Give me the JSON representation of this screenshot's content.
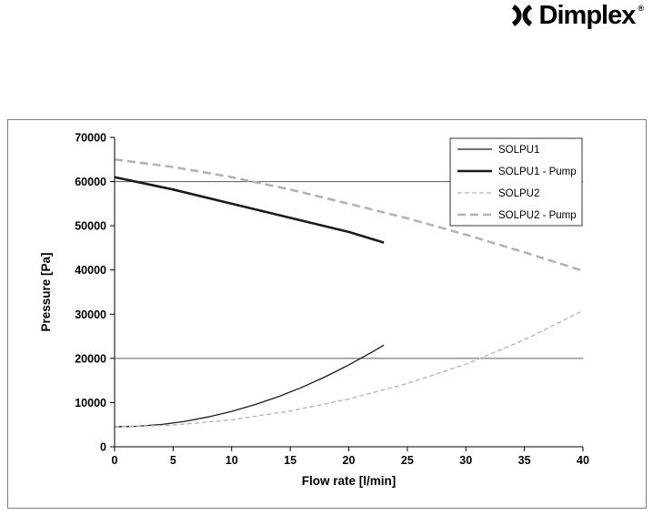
{
  "logo": {
    "text": "Dimplex",
    "registered": "®"
  },
  "chart_data": {
    "type": "line",
    "title": "",
    "xlabel": "Flow rate [l/min]",
    "ylabel": "Pressure [Pa]",
    "xlim": [
      0,
      40
    ],
    "ylim": [
      0,
      70000
    ],
    "xticks": [
      0,
      5,
      10,
      15,
      20,
      25,
      30,
      35,
      40
    ],
    "yticks": [
      0,
      10000,
      20000,
      30000,
      40000,
      50000,
      60000,
      70000
    ],
    "gridlines_y": [
      20000,
      60000
    ],
    "grid": "partial",
    "legend_position": "top-right",
    "series": [
      {
        "name": "SOLPU1",
        "color": "#1a1a1a",
        "width": 1.3,
        "dash": null,
        "x": [
          0,
          2,
          4,
          6,
          8,
          10,
          12,
          14,
          16,
          18,
          20,
          22,
          23
        ],
        "y": [
          4500,
          4650,
          5050,
          5750,
          6750,
          8000,
          9550,
          11350,
          13450,
          15850,
          18500,
          21450,
          23000
        ]
      },
      {
        "name": "SOLPU1 - Pump",
        "color": "#1a1a1a",
        "width": 2.6,
        "dash": null,
        "x": [
          0,
          5,
          10,
          15,
          20,
          23
        ],
        "y": [
          61000,
          58200,
          55000,
          51800,
          48600,
          46200
        ]
      },
      {
        "name": "SOLPU2",
        "color": "#b3b3b3",
        "width": 1.3,
        "dash": "5,3",
        "x": [
          0,
          5,
          10,
          15,
          20,
          25,
          30,
          35,
          40
        ],
        "y": [
          4500,
          4900,
          6100,
          8100,
          10800,
          14300,
          18700,
          24200,
          30800
        ]
      },
      {
        "name": "SOLPU2 - Pump",
        "color": "#b3b3b3",
        "width": 2.6,
        "dash": "9,5",
        "x": [
          0,
          5,
          10,
          15,
          20,
          25,
          30,
          35,
          40
        ],
        "y": [
          65000,
          63300,
          61000,
          58200,
          55000,
          51700,
          48000,
          44000,
          39800
        ]
      }
    ]
  }
}
